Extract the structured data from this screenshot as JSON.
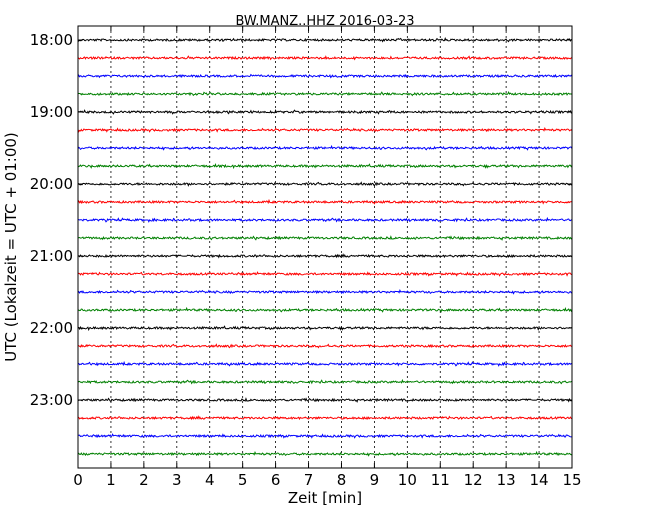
{
  "chart_data": {
    "type": "line",
    "title": "BW.MANZ..HHZ 2016-03-23",
    "xlabel": "Zeit  [min]",
    "ylabel": "UTC (Lokalzeit = UTC + 01:00)",
    "xlim": [
      0,
      15
    ],
    "x_ticks": [
      "0",
      "1",
      "2",
      "3",
      "4",
      "5",
      "6",
      "7",
      "8",
      "9",
      "10",
      "11",
      "12",
      "13",
      "14",
      "15"
    ],
    "y_tick_labels": [
      "18:00",
      "19:00",
      "20:00",
      "21:00",
      "22:00",
      "23:00"
    ],
    "grid": "vertical",
    "trace_interval_minutes": 15,
    "traces": [
      {
        "start": "18:00",
        "color": "#000000"
      },
      {
        "start": "18:15",
        "color": "#ff0000"
      },
      {
        "start": "18:30",
        "color": "#0000ff"
      },
      {
        "start": "18:45",
        "color": "#008000"
      },
      {
        "start": "19:00",
        "color": "#000000"
      },
      {
        "start": "19:15",
        "color": "#ff0000"
      },
      {
        "start": "19:30",
        "color": "#0000ff"
      },
      {
        "start": "19:45",
        "color": "#008000"
      },
      {
        "start": "20:00",
        "color": "#000000"
      },
      {
        "start": "20:15",
        "color": "#ff0000"
      },
      {
        "start": "20:30",
        "color": "#0000ff"
      },
      {
        "start": "20:45",
        "color": "#008000"
      },
      {
        "start": "21:00",
        "color": "#000000"
      },
      {
        "start": "21:15",
        "color": "#ff0000"
      },
      {
        "start": "21:30",
        "color": "#0000ff"
      },
      {
        "start": "21:45",
        "color": "#008000"
      },
      {
        "start": "22:00",
        "color": "#000000"
      },
      {
        "start": "22:15",
        "color": "#ff0000"
      },
      {
        "start": "22:30",
        "color": "#0000ff"
      },
      {
        "start": "22:45",
        "color": "#008000"
      },
      {
        "start": "23:00",
        "color": "#000000"
      },
      {
        "start": "23:15",
        "color": "#ff0000"
      },
      {
        "start": "23:30",
        "color": "#0000ff"
      },
      {
        "start": "23:45",
        "color": "#008000"
      }
    ]
  }
}
